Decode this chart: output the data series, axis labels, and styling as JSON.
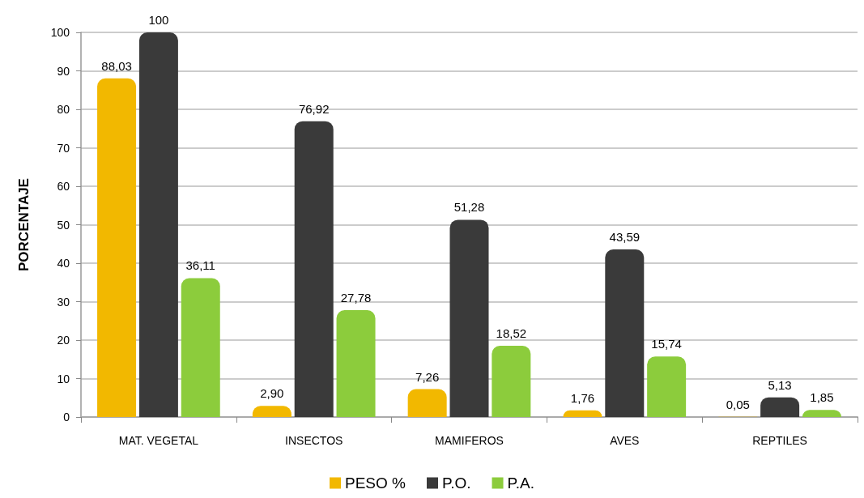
{
  "chart_data": {
    "type": "bar",
    "ylabel": "PORCENTAJE",
    "categories": [
      "MAT. VEGETAL",
      "INSECTOS",
      "MAMIFEROS",
      "AVES",
      "REPTILES"
    ],
    "series": [
      {
        "name": "PESO %",
        "color": "#f2b800",
        "values": [
          88.03,
          2.9,
          7.26,
          1.76,
          0.05
        ],
        "value_labels": [
          "88,03",
          "2,90",
          "7,26",
          "1,76",
          "0,05"
        ]
      },
      {
        "name": "P.O.",
        "color": "#3a3a3a",
        "values": [
          100,
          76.92,
          51.28,
          43.59,
          5.13
        ],
        "value_labels": [
          "100",
          "76,92",
          "51,28",
          "43,59",
          "5,13"
        ]
      },
      {
        "name": "P.A.",
        "color": "#8ccc3c",
        "values": [
          36.11,
          27.78,
          18.52,
          15.74,
          1.85
        ],
        "value_labels": [
          "36,11",
          "27,78",
          "18,52",
          "15,74",
          "1,85"
        ]
      }
    ],
    "ylim": [
      0,
      100
    ],
    "yticks": [
      0,
      10,
      20,
      30,
      40,
      50,
      60,
      70,
      80,
      90,
      100
    ],
    "grid": "y",
    "legend": "bottom"
  }
}
